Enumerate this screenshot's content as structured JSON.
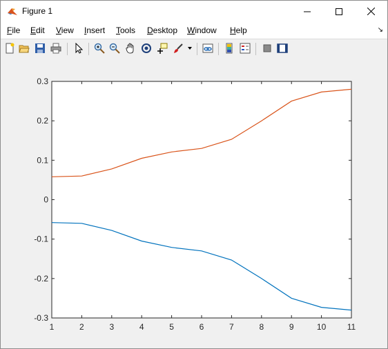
{
  "window": {
    "title": "Figure 1",
    "minimize": "—",
    "maximize": "☐",
    "close": "✕"
  },
  "menu": {
    "items": [
      "File",
      "Edit",
      "View",
      "Insert",
      "Tools",
      "Desktop",
      "Window",
      "Help"
    ]
  },
  "toolbar": {
    "icons": [
      "new-figure-icon",
      "open-file-icon",
      "save-icon",
      "print-icon",
      "pointer-icon",
      "zoom-in-icon",
      "zoom-out-icon",
      "pan-icon",
      "rotate-3d-icon",
      "data-cursor-icon",
      "brush-icon",
      "brush-dropdown-icon",
      "link-plot-icon",
      "colorbar-icon",
      "legend-icon",
      "hide-plot-tools-icon",
      "show-plot-tools-icon"
    ]
  },
  "chart_data": {
    "type": "line",
    "x": [
      1,
      2,
      3,
      4,
      5,
      6,
      7,
      8,
      9,
      10,
      11
    ],
    "xlim": [
      1,
      11
    ],
    "ylim": [
      -0.3,
      0.3
    ],
    "xticks": [
      "1",
      "2",
      "3",
      "4",
      "5",
      "6",
      "7",
      "8",
      "9",
      "10",
      "11"
    ],
    "yticks": [
      "0.3",
      "0.2",
      "0.1",
      "0",
      "-0.1",
      "-0.2",
      "-0.3"
    ],
    "ytick_values": [
      0.3,
      0.2,
      0.1,
      0,
      -0.1,
      -0.2,
      -0.3
    ],
    "grid": false,
    "series": [
      {
        "color": "#0072bd",
        "values": [
          -0.058,
          -0.06,
          -0.078,
          -0.105,
          -0.121,
          -0.13,
          -0.153,
          -0.2,
          -0.25,
          -0.273,
          -0.28
        ]
      },
      {
        "color": "#d95319",
        "values": [
          0.058,
          0.06,
          0.078,
          0.105,
          0.121,
          0.13,
          0.153,
          0.2,
          0.25,
          0.273,
          0.28
        ]
      }
    ]
  }
}
